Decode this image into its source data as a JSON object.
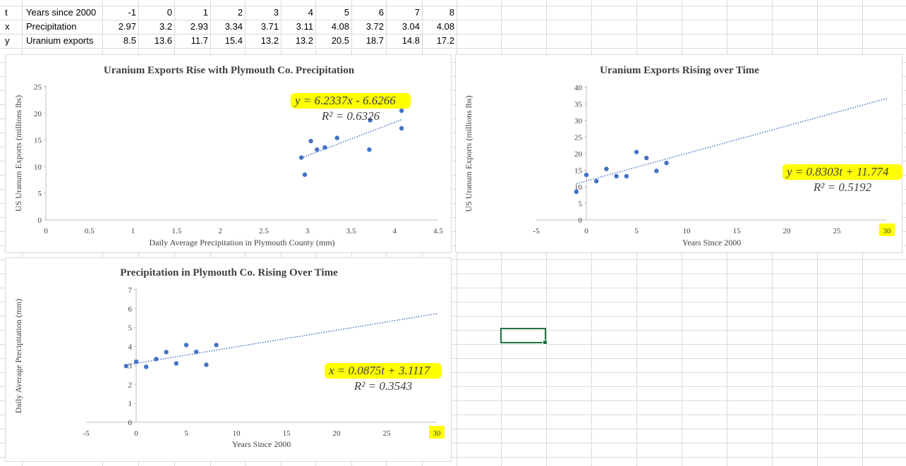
{
  "table": {
    "rows": [
      {
        "var": "t",
        "label": "Years since 2000",
        "values": [
          "-1",
          "0",
          "1",
          "2",
          "3",
          "4",
          "5",
          "6",
          "7",
          "8"
        ]
      },
      {
        "var": "x",
        "label": "Precipitation",
        "values": [
          "2.97",
          "3.2",
          "2.93",
          "3.34",
          "3.71",
          "3.11",
          "4.08",
          "3.72",
          "3.04",
          "4.08"
        ]
      },
      {
        "var": "y",
        "label": "Uranium exports",
        "values": [
          "8.5",
          "13.6",
          "11.7",
          "15.4",
          "13.2",
          "13.2",
          "20.5",
          "18.7",
          "14.8",
          "17.2"
        ]
      }
    ]
  },
  "chart_data": [
    {
      "type": "scatter",
      "title": "Uranium Exports Rise with Plymouth Co. Precipitation",
      "xlabel": "Daily Average Precipitation in Plymouth County (mm)",
      "ylabel": "US Uranum Exports (millions lbs)",
      "xlim": [
        0,
        4.5
      ],
      "ylim": [
        0,
        25
      ],
      "xticks": [
        "0",
        "0.5",
        "1",
        "1.5",
        "2",
        "2.5",
        "3",
        "3.5",
        "4",
        "4.5"
      ],
      "yticks": [
        "0",
        "5",
        "10",
        "15",
        "20",
        "25"
      ],
      "x": [
        2.97,
        3.2,
        2.93,
        3.34,
        3.71,
        3.11,
        4.08,
        3.72,
        3.04,
        4.08
      ],
      "y": [
        8.5,
        13.6,
        11.7,
        15.4,
        13.2,
        13.2,
        20.5,
        18.7,
        14.8,
        17.2
      ],
      "trendline": {
        "slope": 6.2337,
        "intercept": -6.6266,
        "range": [
          2.93,
          4.08
        ]
      },
      "equation": "y = 6.2337x - 6.6266",
      "r2": "R² = 0.6326",
      "grid": false
    },
    {
      "type": "scatter",
      "title": "Uranium Exports Rising over Time",
      "xlabel": "Years Since 2000",
      "ylabel": "US Uranum Exports (millions lbs)",
      "xlim": [
        -5,
        30
      ],
      "ylim": [
        0,
        40
      ],
      "xticks": [
        "-5",
        "0",
        "5",
        "10",
        "15",
        "20",
        "25",
        "30"
      ],
      "yticks": [
        "0",
        "5",
        "10",
        "15",
        "20",
        "25",
        "30",
        "35",
        "40"
      ],
      "x": [
        -1,
        0,
        1,
        2,
        3,
        4,
        5,
        6,
        7,
        8
      ],
      "y": [
        8.5,
        13.6,
        11.7,
        15.4,
        13.2,
        13.2,
        20.5,
        18.7,
        14.8,
        17.2
      ],
      "trendline": {
        "slope": 0.8303,
        "intercept": 11.774,
        "range": [
          -1,
          30
        ]
      },
      "equation": "y = 0.8303t + 11.774",
      "r2": "R² = 0.5192",
      "highlight_tick": "30",
      "grid": false
    },
    {
      "type": "scatter",
      "title": "Precipitation in Plymouth Co. Rising Over Time",
      "xlabel": "Years Since 2000",
      "ylabel": "Daily Average Precipitation (mm)",
      "xlim": [
        -5,
        30
      ],
      "ylim": [
        0,
        7
      ],
      "xticks": [
        "-5",
        "0",
        "5",
        "10",
        "15",
        "20",
        "25",
        "30"
      ],
      "yticks": [
        "0",
        "1",
        "2",
        "3",
        "4",
        "5",
        "6",
        "7"
      ],
      "x": [
        -1,
        0,
        1,
        2,
        3,
        4,
        5,
        6,
        7,
        8
      ],
      "y": [
        2.97,
        3.2,
        2.93,
        3.34,
        3.71,
        3.11,
        4.08,
        3.72,
        3.04,
        4.08
      ],
      "trendline": {
        "slope": 0.0875,
        "intercept": 3.1117,
        "range": [
          -1,
          30
        ]
      },
      "equation": "x = 0.0875t + 3.1117",
      "r2": "R² = 0.3543",
      "highlight_tick": "30",
      "grid": false
    }
  ],
  "colors": {
    "marker": "#4472c4",
    "highlight": "#ffff00",
    "selection": "#217346",
    "gridline": "#d9d9d9"
  }
}
